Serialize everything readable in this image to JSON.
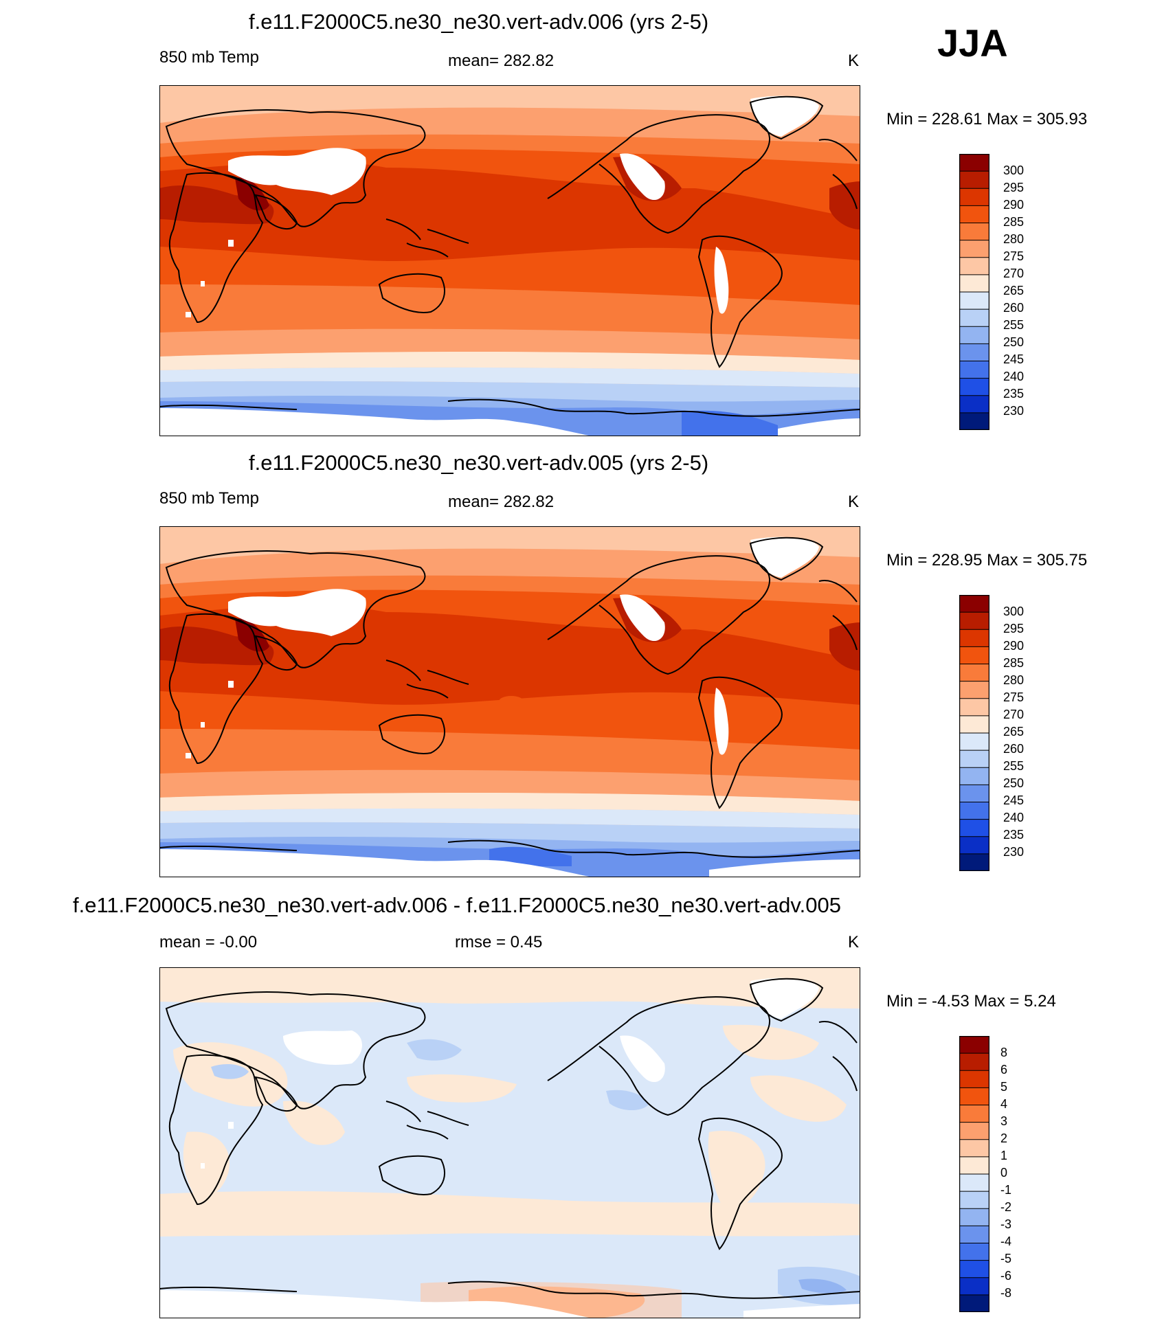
{
  "season": "JJA",
  "panels": [
    {
      "title": "f.e11.F2000C5.ne30_ne30.vert-adv.006 (yrs 2-5)",
      "left": "850 mb Temp",
      "center": "mean= 282.82",
      "right": "K",
      "minmax": "Min = 228.61 Max = 305.93",
      "levels": [
        "300",
        "295",
        "290",
        "285",
        "280",
        "275",
        "270",
        "265",
        "260",
        "255",
        "250",
        "245",
        "240",
        "235",
        "230"
      ],
      "colors": [
        "#8b0000",
        "#b81d00",
        "#dc3600",
        "#f1540e",
        "#f97b3a",
        "#fca06f",
        "#fdc7a5",
        "#fde9d6",
        "#dbe8f9",
        "#b9d1f6",
        "#93b4f1",
        "#6b93ed",
        "#4372eb",
        "#1f50e6",
        "#0a2fc6",
        "#001a7a"
      ]
    },
    {
      "title": "f.e11.F2000C5.ne30_ne30.vert-adv.005 (yrs 2-5)",
      "left": "850 mb Temp",
      "center": "mean= 282.82",
      "right": "K",
      "minmax": "Min = 228.95 Max = 305.75",
      "levels": [
        "300",
        "295",
        "290",
        "285",
        "280",
        "275",
        "270",
        "265",
        "260",
        "255",
        "250",
        "245",
        "240",
        "235",
        "230"
      ],
      "colors": [
        "#8b0000",
        "#b81d00",
        "#dc3600",
        "#f1540e",
        "#f97b3a",
        "#fca06f",
        "#fdc7a5",
        "#fde9d6",
        "#dbe8f9",
        "#b9d1f6",
        "#93b4f1",
        "#6b93ed",
        "#4372eb",
        "#1f50e6",
        "#0a2fc6",
        "#001a7a"
      ]
    },
    {
      "title": "f.e11.F2000C5.ne30_ne30.vert-adv.006 - f.e11.F2000C5.ne30_ne30.vert-adv.005",
      "left": "mean =  -0.00",
      "center": "rmse =   0.45",
      "right": "K",
      "minmax": "Min =  -4.53 Max =   5.24",
      "levels": [
        "8",
        "6",
        "5",
        "4",
        "3",
        "2",
        "1",
        "0",
        "-1",
        "-2",
        "-3",
        "-4",
        "-5",
        "-6",
        "-8"
      ],
      "colors": [
        "#8b0000",
        "#b81d00",
        "#dc3600",
        "#f1540e",
        "#f97b3a",
        "#fca06f",
        "#fdc7a5",
        "#fde9d6",
        "#dbe8f9",
        "#b9d1f6",
        "#93b4f1",
        "#6b93ed",
        "#4372eb",
        "#1f50e6",
        "#0a2fc6",
        "#001a7a"
      ]
    }
  ]
}
